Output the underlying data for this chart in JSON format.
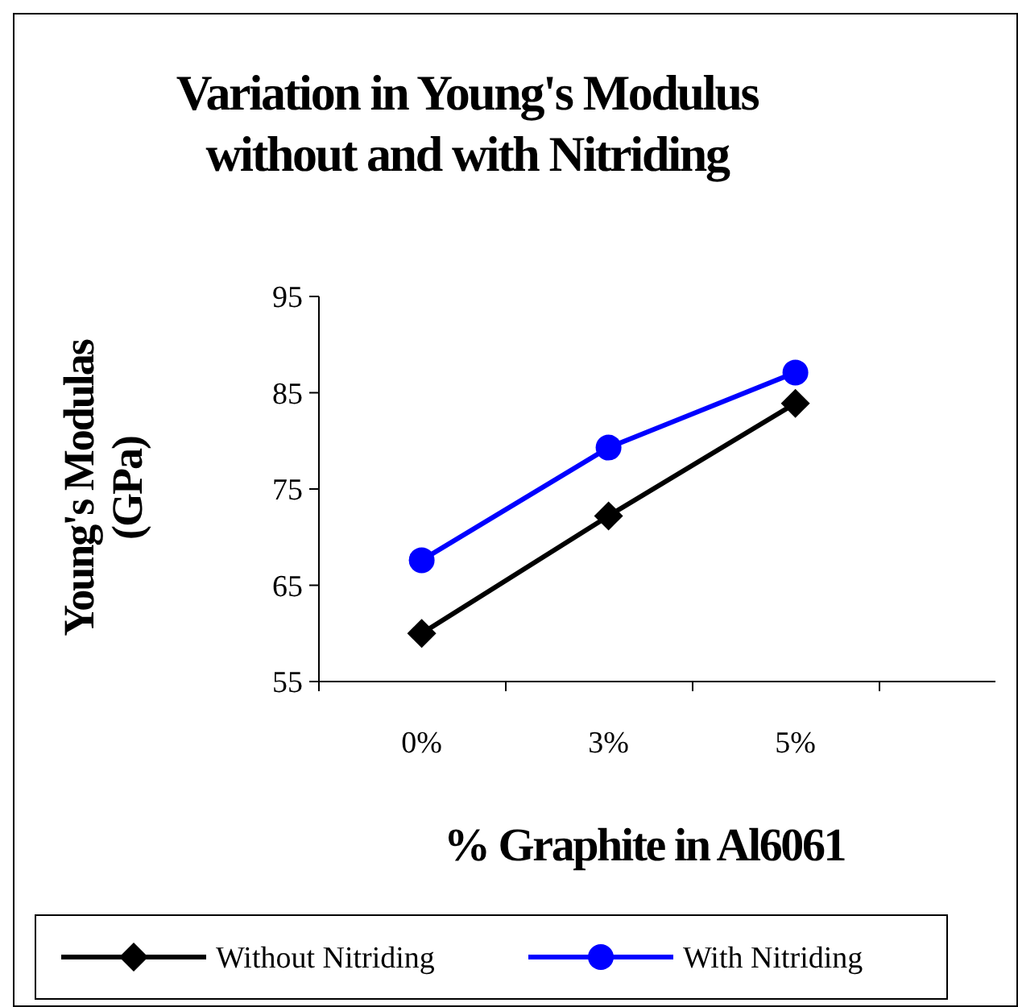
{
  "chart_data": {
    "type": "line",
    "title": "Variation in Young's Modulus without and with Nitriding",
    "xlabel": "% Graphite in Al6061",
    "ylabel": "Young's Modulas (GPa)",
    "categories": [
      "0%",
      "3%",
      "5%"
    ],
    "series": [
      {
        "name": "Without Nitriding",
        "color": "#000000",
        "marker": "diamond",
        "values": [
          60.0,
          72.2,
          83.9
        ]
      },
      {
        "name": "With Nitriding",
        "color": "#0000ff",
        "marker": "circle",
        "values": [
          67.6,
          79.3,
          87.1
        ]
      }
    ],
    "ylim": [
      55,
      95
    ],
    "yticks": [
      55,
      65,
      75,
      85,
      95
    ],
    "grid": false,
    "legend": "bottom"
  }
}
